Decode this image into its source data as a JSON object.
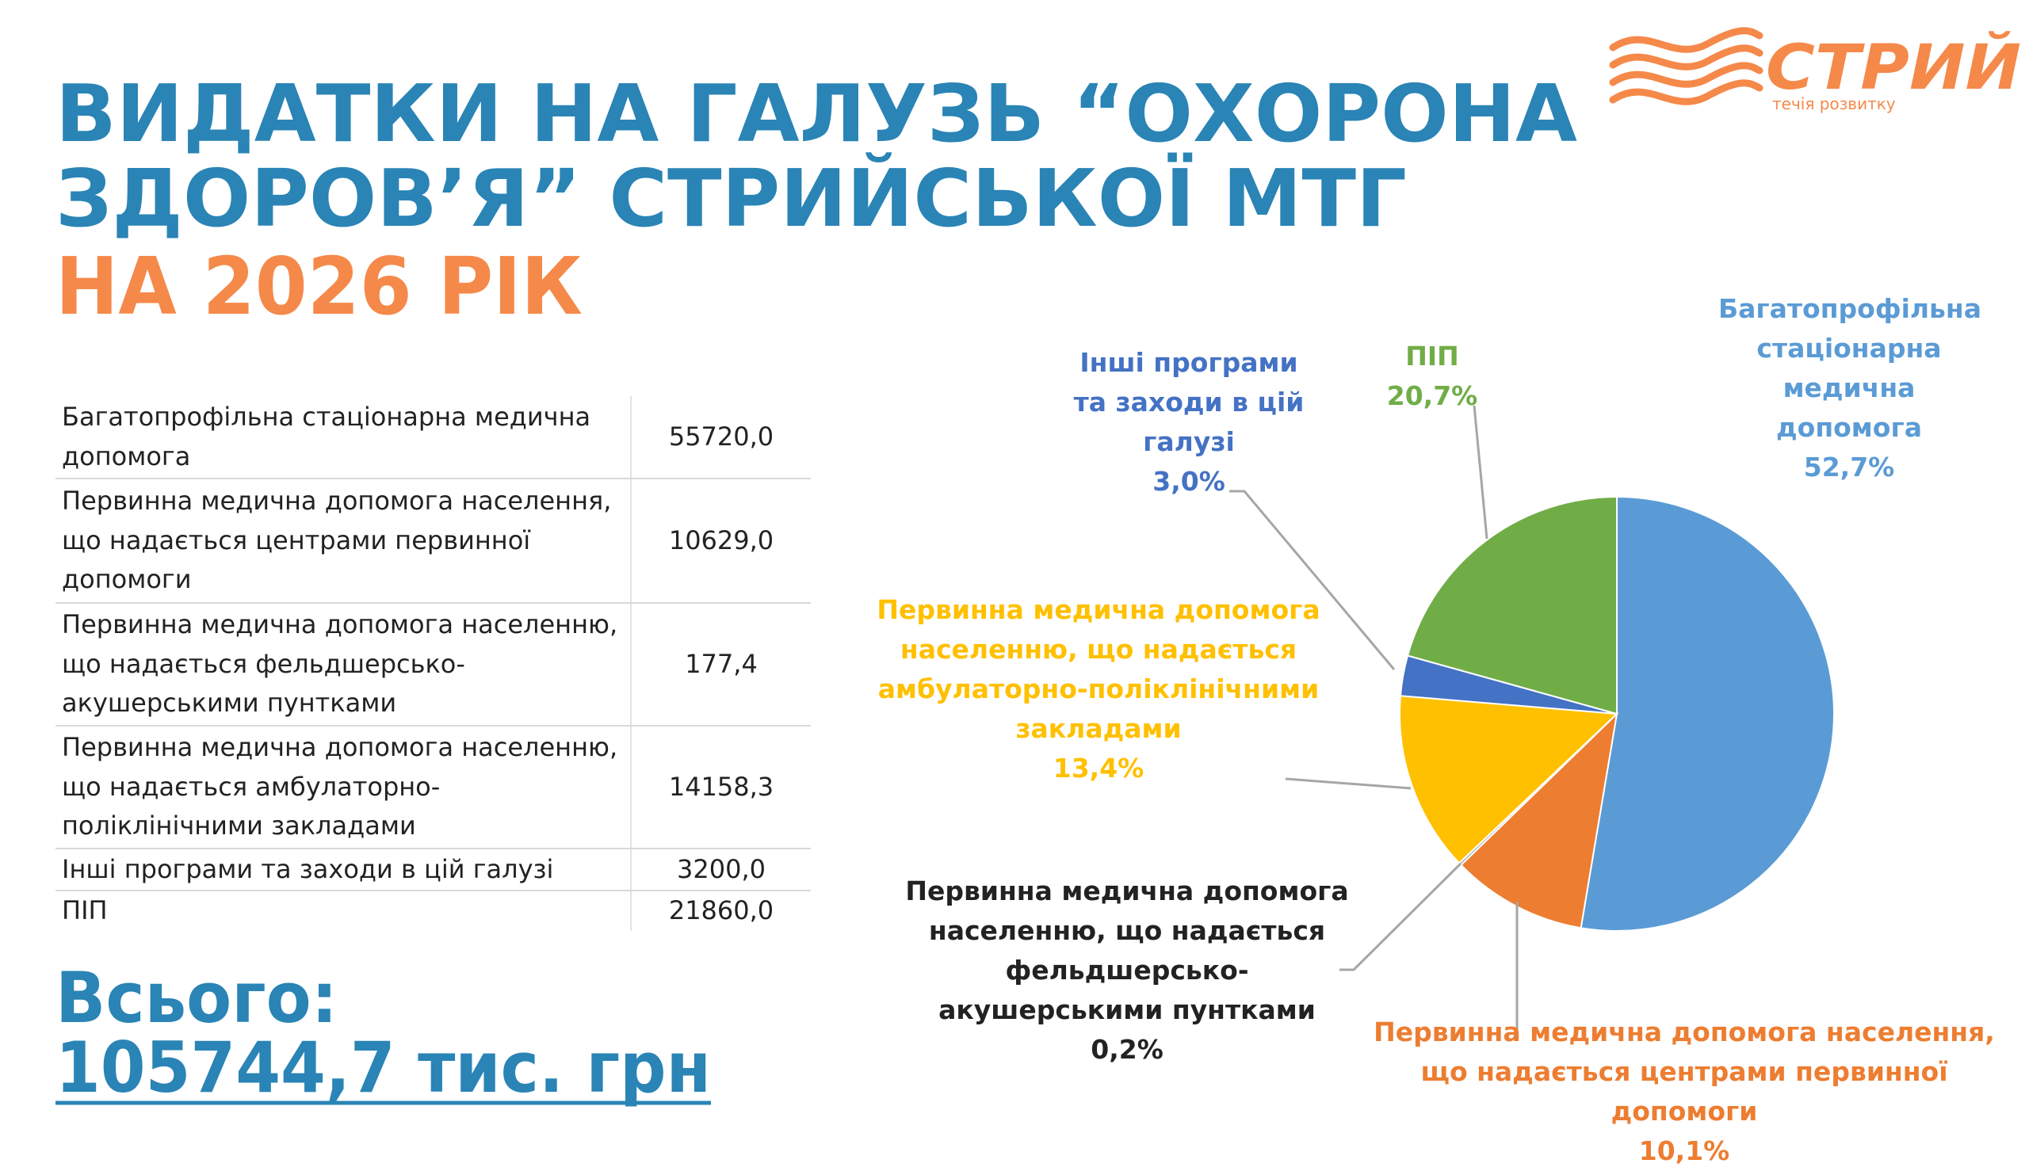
{
  "header": {
    "title": [
      "ВИДАТКИ НА ГАЛУЗЬ “ОХОРОНА",
      "ЗДОРОВ’Я” СТРИЙСЬКОЇ МТГ"
    ],
    "subtitle": "НА 2026 РІК"
  },
  "logo": {
    "name": "СТРИЙ",
    "tagline": "течія розвитку"
  },
  "table": {
    "rows": [
      [
        "Багатопрофільна стаціонарна медична допомога",
        "55720,0"
      ],
      [
        "Первинна медична допомога населення, що надається центрами первинної допомоги",
        "10629,0"
      ],
      [
        "Первинна медична допомога населенню, що надається фельдшерсько-акушерськими пунтками",
        "177,4"
      ],
      [
        "Первинна медична допомога населенню, що надається амбулаторно-поліклінічними закладами",
        "14158,3"
      ],
      [
        "Інші програми та заходи в цій галузі",
        "3200,0"
      ],
      [
        "ПІП",
        "21860,0"
      ]
    ]
  },
  "total": {
    "label": "Всього:",
    "value": "105744,7 тис. грн"
  },
  "chart_data": {
    "type": "pie",
    "categories": [
      "Багатопрофільна стаціонарна медична допомога",
      "Первинна медична допомога населення, що надається центрами первинної допомоги",
      "Первинна медична допомога населенню, що надається фельдшерсько-акушерськими пунтками",
      "Первинна медична допомога населенню, що надається амбулаторно-поліклінічними закладами",
      "Інші програми та заходи в цій галузі",
      "ПІП"
    ],
    "values": [
      52.7,
      10.1,
      0.2,
      13.4,
      3.0,
      20.7
    ],
    "value_labels": [
      "52,7%",
      "10,1%",
      "0,2%",
      "13,4%",
      "3,0%",
      "20,7%"
    ],
    "colors": [
      "#5b9bd5",
      "#ed7d31",
      "#a5a5a5",
      "#ffc000",
      "#4472c4",
      "#70ad47"
    ],
    "label_colors": [
      "#5b9bd5",
      "#ed7d31",
      "#222222",
      "#ffc000",
      "#4472c4",
      "#70ad47"
    ]
  }
}
